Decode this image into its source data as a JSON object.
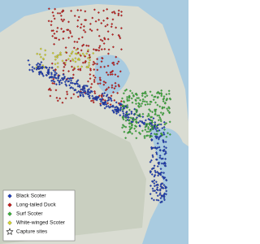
{
  "legend": {
    "items": [
      {
        "label": "Black Scoter",
        "color": "#1f3fbf",
        "marker": "diamond"
      },
      {
        "label": "Long-tailed Duck",
        "color": "#c81e1e",
        "marker": "diamond"
      },
      {
        "label": "Surf Scoter",
        "color": "#3cb43c",
        "marker": "diamond"
      },
      {
        "label": "White-winged Scoter",
        "color": "#d8d82a",
        "marker": "diamond"
      },
      {
        "label": "Capture sites",
        "color": "#ffffff",
        "marker": "star"
      }
    ]
  }
}
